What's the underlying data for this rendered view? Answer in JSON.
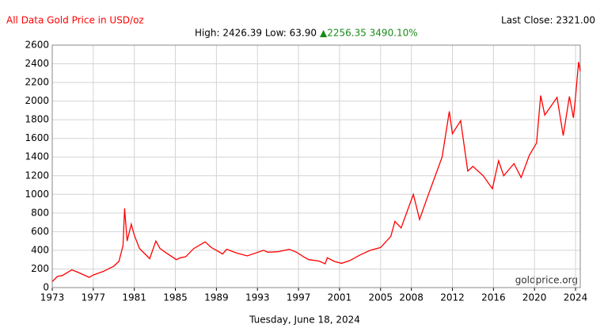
{
  "chart_data": {
    "type": "line",
    "title": "All Data Gold Price in USD/oz",
    "last_close": "Last Close: 2321.00",
    "subtitle": "High: 2426.39 Low: 63.90",
    "change": "▲2256.35 3490.10%",
    "watermark": "goldprice.org",
    "date": "Tuesday, June 18, 2024",
    "grid": true,
    "xlim": [
      1973,
      2024.46
    ],
    "ylim": [
      0,
      2600
    ],
    "xticks": [
      1973,
      1977,
      1981,
      1985,
      1989,
      1993,
      1997,
      2001,
      2005,
      2008,
      2012,
      2016,
      2020,
      2024
    ],
    "yticks": [
      0,
      200,
      400,
      600,
      800,
      1000,
      1200,
      1400,
      1600,
      1800,
      2000,
      2200,
      2400,
      2600
    ],
    "series": [
      {
        "color": "#ff0000",
        "x": [
          1973,
          1973.5,
          1974,
          1974.9,
          1975.5,
          1976.6,
          1977,
          1978,
          1979,
          1979.5,
          1979.9,
          1980.05,
          1980.3,
          1980.7,
          1981,
          1981.5,
          1982.5,
          1983.1,
          1983.5,
          1984,
          1985.1,
          1985.5,
          1986,
          1986.8,
          1987.9,
          1988.5,
          1989,
          1989.6,
          1990,
          1991,
          1992,
          1993.6,
          1994,
          1995,
          1996.1,
          1996.8,
          1997.5,
          1998,
          1999,
          1999.6,
          1999.8,
          2000.5,
          2001.2,
          2002,
          2003,
          2004,
          2005,
          2006,
          2006.4,
          2007,
          2008.2,
          2008.8,
          2009.5,
          2010,
          2011,
          2011.7,
          2012,
          2012.8,
          2013.5,
          2014,
          2015,
          2015.9,
          2016.5,
          2017,
          2018,
          2018.7,
          2019.5,
          2020.2,
          2020.6,
          2021,
          2022.2,
          2022.8,
          2023.4,
          2023.8,
          2024,
          2024.3,
          2024.46
        ],
        "values": [
          65,
          120,
          130,
          190,
          165,
          110,
          135,
          175,
          230,
          280,
          450,
          850,
          500,
          680,
          560,
          420,
          310,
          500,
          420,
          380,
          300,
          320,
          330,
          420,
          490,
          430,
          400,
          360,
          410,
          370,
          340,
          400,
          380,
          385,
          410,
          380,
          330,
          300,
          285,
          255,
          320,
          280,
          260,
          290,
          350,
          400,
          430,
          550,
          710,
          640,
          1000,
          730,
          950,
          1100,
          1400,
          1890,
          1650,
          1790,
          1250,
          1300,
          1200,
          1060,
          1360,
          1200,
          1330,
          1180,
          1420,
          1550,
          2060,
          1850,
          2040,
          1630,
          2050,
          1820,
          2040,
          2420,
          2321
        ]
      }
    ]
  }
}
